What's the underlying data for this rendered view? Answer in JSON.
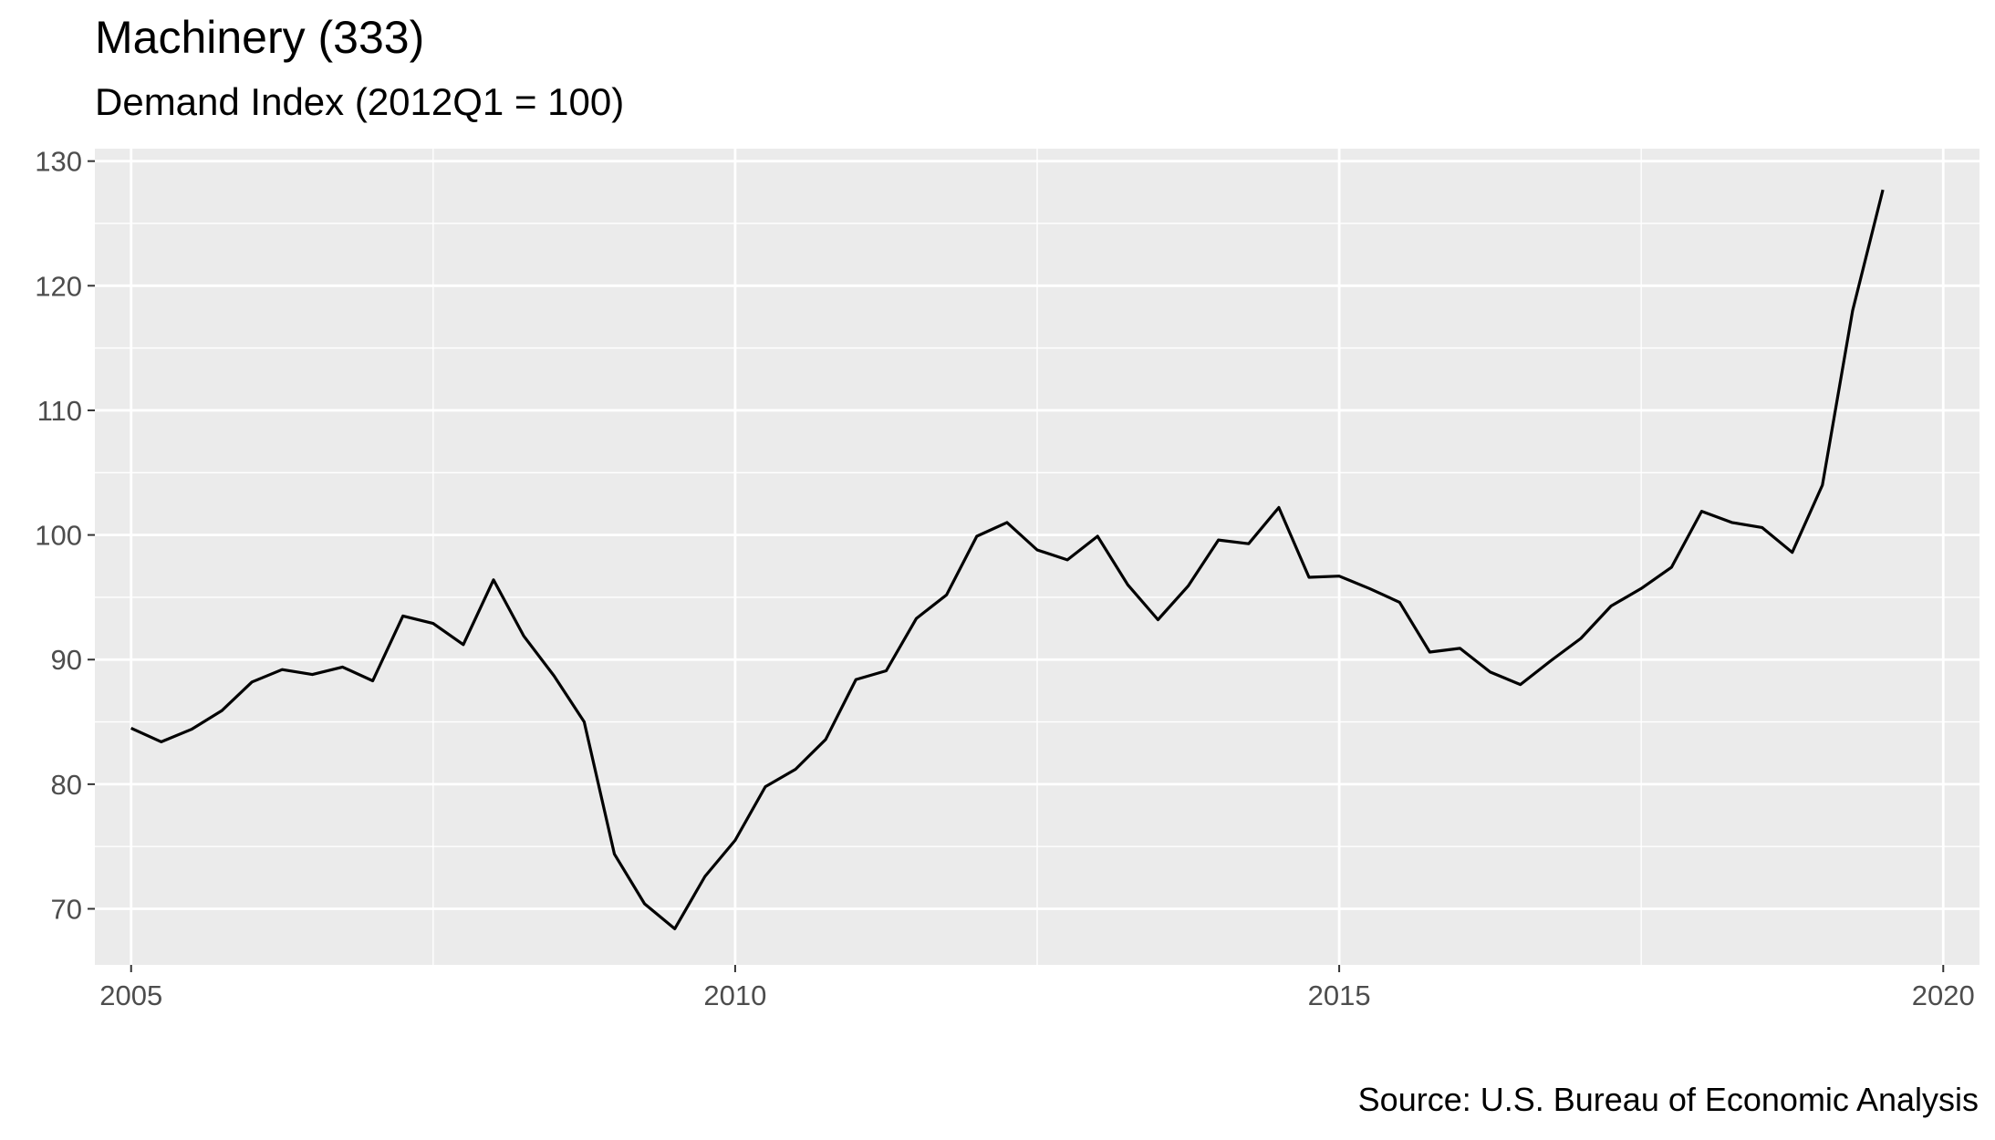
{
  "chart_data": {
    "type": "line",
    "title": "Machinery (333)",
    "subtitle": "Demand Index (2012Q1 = 100)",
    "caption": "Source: U.S. Bureau of Economic Analysis",
    "xlabel": "",
    "ylabel": "",
    "xlim": [
      2004.7,
      2020.3
    ],
    "ylim": [
      65.5,
      131
    ],
    "x_ticks": [
      2005,
      2010,
      2015,
      2020
    ],
    "y_ticks": [
      70,
      80,
      90,
      100,
      110,
      120,
      130
    ],
    "grid": true,
    "line_color": "#000000",
    "panel_color": "#ebebeb",
    "series": [
      {
        "x": [
          "2005Q1",
          "2005Q2",
          "2005Q3",
          "2005Q4",
          "2006Q1",
          "2006Q2",
          "2006Q3",
          "2006Q4",
          "2007Q1",
          "2007Q2",
          "2007Q3",
          "2007Q4",
          "2008Q1",
          "2008Q2",
          "2008Q3",
          "2008Q4",
          "2009Q1",
          "2009Q2",
          "2009Q3",
          "2009Q4",
          "2010Q1",
          "2010Q2",
          "2010Q3",
          "2010Q4",
          "2011Q1",
          "2011Q2",
          "2011Q3",
          "2011Q4",
          "2012Q1",
          "2012Q2",
          "2012Q3",
          "2012Q4",
          "2013Q1",
          "2013Q2",
          "2013Q3",
          "2013Q4",
          "2014Q1",
          "2014Q2",
          "2014Q3",
          "2014Q4",
          "2015Q1",
          "2015Q2",
          "2015Q3",
          "2015Q4",
          "2016Q1",
          "2016Q2",
          "2016Q3",
          "2016Q4",
          "2017Q1",
          "2017Q2",
          "2017Q3",
          "2017Q4",
          "2018Q1",
          "2018Q2",
          "2018Q3",
          "2018Q4",
          "2019Q1",
          "2019Q2",
          "2019Q3"
        ],
        "values": [
          84.5,
          83.4,
          84.4,
          85.9,
          88.2,
          89.2,
          88.8,
          89.4,
          88.3,
          93.5,
          92.9,
          91.2,
          96.4,
          91.9,
          88.7,
          85.0,
          74.4,
          70.4,
          68.4,
          72.6,
          75.5,
          79.8,
          81.2,
          83.6,
          88.4,
          89.1,
          93.3,
          95.2,
          99.9,
          101.0,
          98.8,
          98.0,
          99.9,
          96.0,
          93.2,
          95.9,
          99.6,
          99.3,
          102.2,
          96.6,
          96.7,
          95.7,
          94.6,
          90.6,
          90.9,
          89.0,
          88.0,
          89.9,
          91.7,
          94.3,
          95.7,
          97.4,
          101.9,
          101.0,
          100.6,
          98.6,
          104.0,
          118.0,
          127.7
        ]
      }
    ]
  }
}
